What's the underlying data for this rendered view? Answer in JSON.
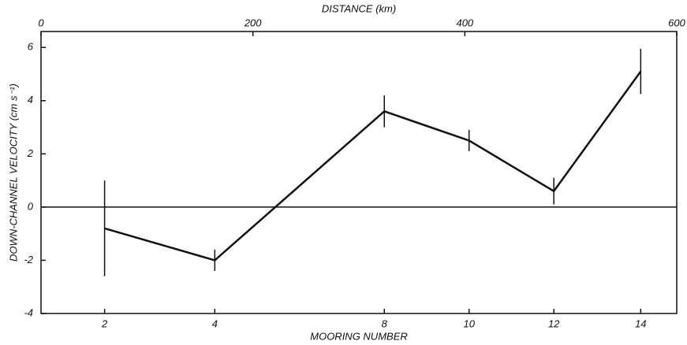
{
  "chart_data": {
    "type": "line",
    "x_label": "DISTANCE (km)",
    "category_label": "MOORING NUMBER",
    "y_label": "DOWN-CHANNEL VELOCITY (cm s⁻¹)",
    "x": [
      60,
      164,
      324,
      404,
      484,
      566
    ],
    "categories": [
      "2",
      "4",
      "8",
      "10",
      "12",
      "14"
    ],
    "series": [
      {
        "color": "#111111",
        "values": [
          -0.8,
          -2.0,
          3.6,
          2.5,
          0.6,
          5.1
        ],
        "errors": [
          1.8,
          0.4,
          0.6,
          0.4,
          0.5,
          0.85
        ]
      }
    ],
    "xlim": [
      0,
      600
    ],
    "xticks": [
      0,
      200,
      400,
      600
    ],
    "ylim": [
      -4,
      6.6
    ],
    "yticks": [
      -4,
      -2,
      0,
      2,
      4,
      6
    ],
    "reference_line": 0
  }
}
